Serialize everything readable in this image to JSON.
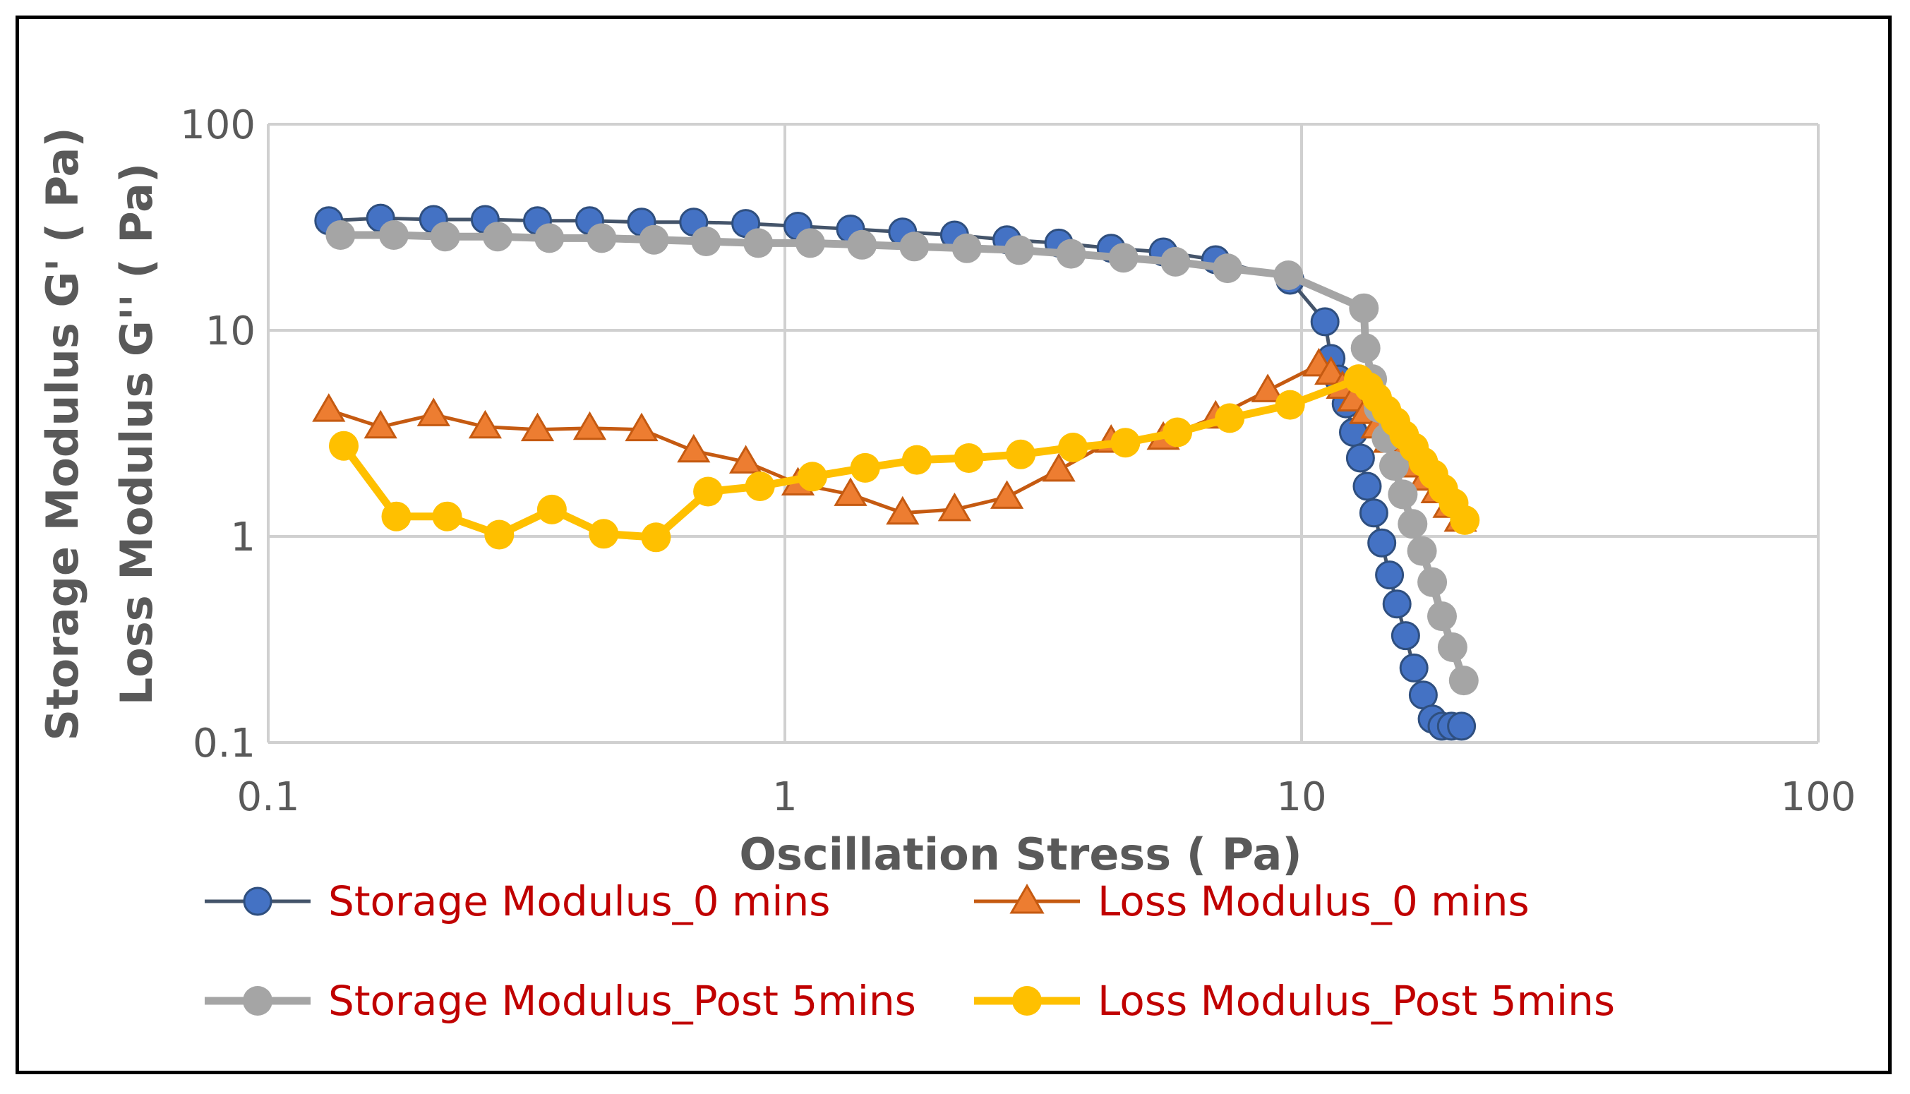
{
  "chart_data": {
    "type": "line",
    "scale": {
      "x": "log",
      "y": "log"
    },
    "xlim": [
      0.1,
      100
    ],
    "ylim": [
      0.1,
      100
    ],
    "x_ticks": [
      "0.1",
      "1",
      "10",
      "100"
    ],
    "y_ticks": [
      "0.1",
      "1",
      "10",
      "100"
    ],
    "xlabel": "Oscillation Stress ( Pa)",
    "ylabel_line1": "Storage Modulus G' ( Pa)",
    "ylabel_line2": "Loss Modulus G'' ( Pa)",
    "grid": true,
    "legend_position": "bottom",
    "series": [
      {
        "name": "Storage Modulus_0 mins",
        "line_color": "#44546a",
        "marker": "circle",
        "marker_fill": "#4472c4",
        "marker_stroke": "#2f4f7f",
        "x": [
          0.131,
          0.165,
          0.209,
          0.263,
          0.332,
          0.419,
          0.528,
          0.666,
          0.84,
          1.06,
          1.34,
          1.69,
          2.13,
          2.69,
          3.39,
          4.28,
          5.4,
          6.82,
          9.5,
          11.1,
          11.4,
          11.8,
          12.2,
          12.6,
          13.0,
          13.4,
          13.8,
          14.3,
          14.8,
          15.3,
          15.9,
          16.5,
          17.2,
          17.9,
          18.7,
          19.5,
          20.4
        ],
        "y": [
          34,
          35,
          34.5,
          34.5,
          34,
          34,
          33.5,
          33.5,
          33,
          32,
          31,
          30,
          29,
          27.5,
          26.5,
          25,
          24,
          22,
          17.5,
          11,
          7.3,
          5.8,
          4.4,
          3.2,
          2.4,
          1.75,
          1.3,
          0.93,
          0.65,
          0.47,
          0.33,
          0.23,
          0.17,
          0.13,
          0.12,
          0.12,
          0.12
        ]
      },
      {
        "name": "Loss Modulus_0 mins",
        "line_color": "#c55a11",
        "marker": "triangle",
        "marker_fill": "#ed7d31",
        "marker_stroke": "#c55a11",
        "x": [
          0.131,
          0.165,
          0.209,
          0.263,
          0.332,
          0.419,
          0.528,
          0.666,
          0.84,
          1.06,
          1.34,
          1.69,
          2.13,
          2.69,
          3.39,
          4.28,
          5.4,
          6.82,
          8.6,
          10.8,
          11.4,
          12.0,
          12.6,
          13.3,
          14.0,
          14.8,
          15.6,
          16.4,
          17.3,
          18.3,
          19.3,
          20.3
        ],
        "y": [
          4.1,
          3.4,
          3.9,
          3.4,
          3.3,
          3.35,
          3.3,
          2.6,
          2.3,
          1.8,
          1.6,
          1.3,
          1.35,
          1.55,
          2.1,
          2.9,
          3.0,
          3.8,
          5.1,
          6.8,
          6.2,
          5.3,
          4.6,
          4.0,
          3.4,
          2.9,
          2.5,
          2.2,
          1.9,
          1.65,
          1.4,
          1.2
        ]
      },
      {
        "name": "Storage Modulus_Post 5mins",
        "line_color": "#a5a5a5",
        "marker": "circle",
        "marker_fill": "#a5a5a5",
        "marker_stroke": "#a5a5a5",
        "x": [
          0.138,
          0.175,
          0.22,
          0.278,
          0.35,
          0.442,
          0.558,
          0.704,
          0.888,
          1.12,
          1.41,
          1.78,
          2.25,
          2.84,
          3.58,
          4.52,
          5.7,
          7.19,
          9.43,
          13.2,
          13.3,
          13.7,
          14.1,
          14.6,
          15.1,
          15.7,
          16.4,
          17.1,
          17.9,
          18.7,
          19.6,
          20.6
        ],
        "y": [
          29,
          29,
          28.5,
          28.5,
          28,
          28,
          27.5,
          27,
          26.5,
          26.5,
          26,
          25.5,
          25,
          24.5,
          23.5,
          22.5,
          21.5,
          20,
          18.5,
          12.8,
          8.2,
          5.8,
          4.2,
          3.0,
          2.2,
          1.6,
          1.15,
          0.85,
          0.6,
          0.41,
          0.29,
          0.2
        ]
      },
      {
        "name": "Loss Modulus_Post 5mins",
        "line_color": "#ffc000",
        "marker": "circle",
        "marker_fill": "#ffc000",
        "marker_stroke": "#ffc000",
        "x": [
          0.14,
          0.177,
          0.222,
          0.28,
          0.354,
          0.446,
          0.563,
          0.71,
          0.895,
          1.13,
          1.43,
          1.8,
          2.27,
          2.86,
          3.61,
          4.56,
          5.75,
          7.26,
          9.5,
          12.9,
          13.5,
          14.0,
          14.6,
          15.2,
          15.8,
          16.5,
          17.2,
          18.0,
          18.8,
          19.7,
          20.7
        ],
        "y": [
          2.75,
          1.25,
          1.25,
          1.02,
          1.35,
          1.03,
          0.99,
          1.65,
          1.75,
          1.95,
          2.15,
          2.35,
          2.4,
          2.5,
          2.7,
          2.85,
          3.2,
          3.75,
          4.35,
          5.8,
          5.3,
          4.7,
          4.1,
          3.6,
          3.1,
          2.7,
          2.3,
          2.0,
          1.7,
          1.45,
          1.2
        ]
      }
    ]
  }
}
